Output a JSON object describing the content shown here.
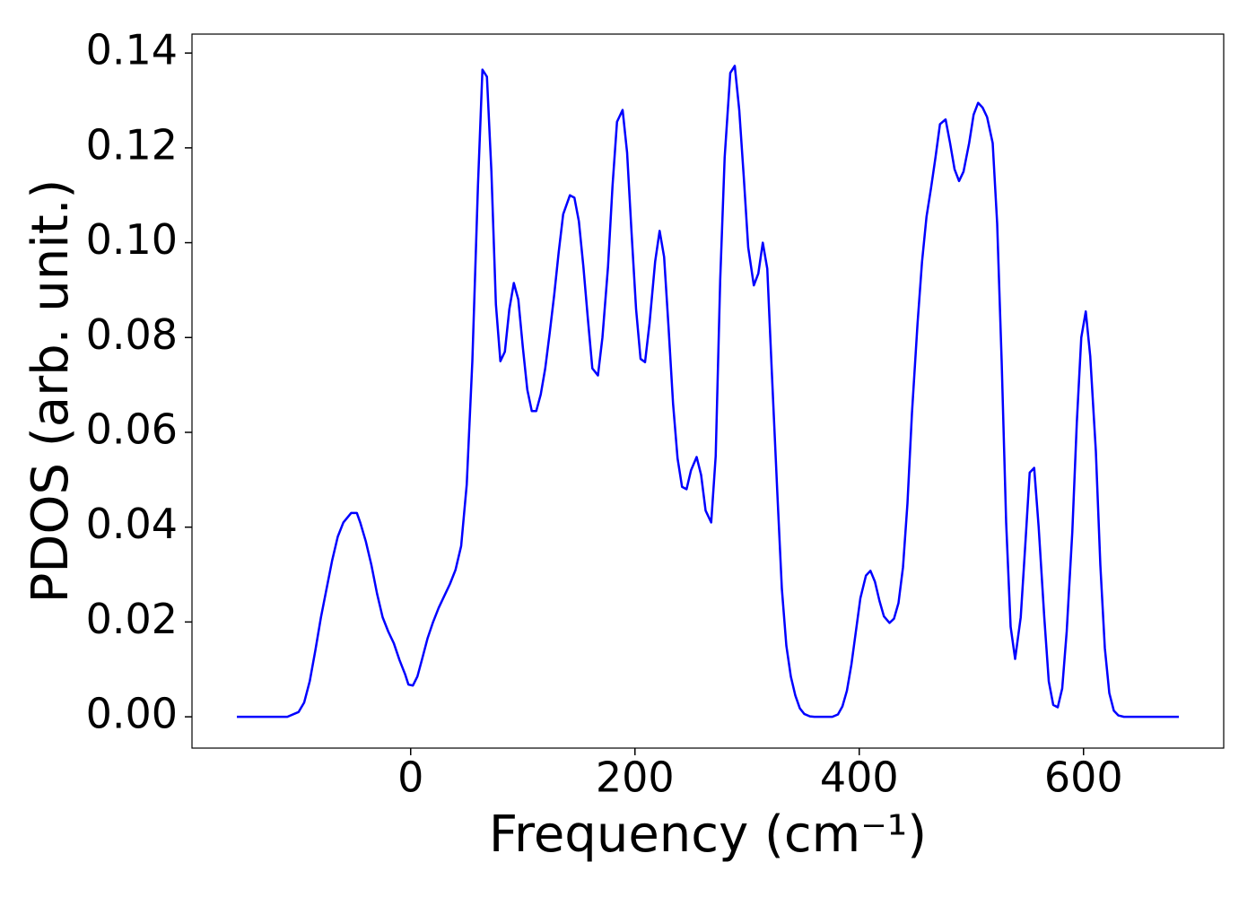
{
  "chart_data": {
    "type": "line",
    "xlabel": "Frequency (cm⁻¹)",
    "ylabel": "PDOS (arb. unit.)",
    "xlim": [
      -195,
      725
    ],
    "ylim": [
      -0.0066,
      0.144
    ],
    "xticks": [
      0,
      200,
      400,
      600
    ],
    "yticks": [
      {
        "value": 0,
        "label": "0.00"
      },
      {
        "value": 0.02,
        "label": "0.02"
      },
      {
        "value": 0.04,
        "label": "0.04"
      },
      {
        "value": 0.06,
        "label": "0.06"
      },
      {
        "value": 0.08,
        "label": "0.08"
      },
      {
        "value": 0.1,
        "label": "0.10"
      },
      {
        "value": 0.12,
        "label": "0.12"
      },
      {
        "value": 0.14,
        "label": "0.14"
      }
    ],
    "x": [
      -155,
      -110,
      -100,
      -95,
      -90,
      -85,
      -80,
      -75,
      -70,
      -65,
      -60,
      -53,
      -48,
      -45,
      -40,
      -35,
      -30,
      -25,
      -20,
      -15,
      -10,
      -5,
      -2,
      2,
      6,
      10,
      15,
      20,
      25,
      30,
      35,
      40,
      45,
      50,
      55,
      60,
      64,
      68,
      72,
      76,
      80,
      84,
      88,
      92,
      96,
      100,
      104,
      108,
      112,
      116,
      120,
      124,
      128,
      132,
      136,
      142,
      146,
      150,
      154,
      158,
      162,
      167,
      171,
      176,
      180,
      184,
      189,
      193,
      197,
      201,
      205,
      209,
      213,
      218,
      222,
      226,
      230,
      234,
      238,
      242,
      246,
      250,
      255,
      259,
      263,
      268,
      272,
      276,
      280,
      285,
      289,
      293,
      297,
      301,
      306,
      310,
      314,
      318,
      322,
      327,
      331,
      335,
      339,
      343,
      347,
      351,
      356,
      360,
      376,
      381,
      385,
      389,
      393,
      397,
      401,
      406,
      410,
      414,
      418,
      422,
      427,
      431,
      435,
      439,
      443,
      447,
      452,
      456,
      460,
      464,
      468,
      472,
      477,
      481,
      485,
      489,
      493,
      498,
      502,
      506,
      510,
      514,
      519,
      523,
      527,
      531,
      535,
      539,
      544,
      548,
      552,
      556,
      560,
      565,
      569,
      573,
      577,
      581,
      585,
      590,
      594,
      598,
      602,
      606,
      611,
      615,
      619,
      623,
      627,
      631,
      636,
      685
    ],
    "series": [
      {
        "color": "#0000ff",
        "values": [
          0,
          0,
          0.001,
          0.003,
          0.0075,
          0.014,
          0.021,
          0.027,
          0.033,
          0.038,
          0.041,
          0.043,
          0.043,
          0.041,
          0.037,
          0.032,
          0.026,
          0.021,
          0.018,
          0.0155,
          0.012,
          0.009,
          0.0068,
          0.0066,
          0.0085,
          0.012,
          0.0165,
          0.02,
          0.023,
          0.0255,
          0.028,
          0.031,
          0.036,
          0.049,
          0.075,
          0.112,
          0.1365,
          0.135,
          0.115,
          0.087,
          0.075,
          0.077,
          0.086,
          0.0915,
          0.088,
          0.078,
          0.069,
          0.0645,
          0.0645,
          0.068,
          0.0735,
          0.081,
          0.089,
          0.098,
          0.106,
          0.11,
          0.1095,
          0.1045,
          0.095,
          0.084,
          0.0735,
          0.072,
          0.08,
          0.095,
          0.112,
          0.1255,
          0.128,
          0.119,
          0.102,
          0.086,
          0.0755,
          0.0748,
          0.083,
          0.096,
          0.1025,
          0.097,
          0.082,
          0.066,
          0.0545,
          0.0485,
          0.048,
          0.052,
          0.0548,
          0.051,
          0.0435,
          0.041,
          0.055,
          0.092,
          0.118,
          0.1358,
          0.1373,
          0.128,
          0.114,
          0.099,
          0.091,
          0.0935,
          0.1,
          0.0945,
          0.073,
          0.047,
          0.027,
          0.015,
          0.0085,
          0.0045,
          0.0018,
          0.0006,
          0.0001,
          0,
          0,
          0.0005,
          0.0022,
          0.0055,
          0.011,
          0.018,
          0.025,
          0.0298,
          0.0308,
          0.0285,
          0.0245,
          0.0212,
          0.0198,
          0.0207,
          0.024,
          0.0315,
          0.045,
          0.064,
          0.083,
          0.096,
          0.1055,
          0.1115,
          0.118,
          0.125,
          0.126,
          0.121,
          0.1155,
          0.113,
          0.115,
          0.121,
          0.127,
          0.1295,
          0.1285,
          0.1265,
          0.121,
          0.104,
          0.075,
          0.041,
          0.019,
          0.0122,
          0.021,
          0.036,
          0.0515,
          0.0525,
          0.04,
          0.021,
          0.0075,
          0.0025,
          0.002,
          0.006,
          0.018,
          0.039,
          0.062,
          0.08,
          0.0855,
          0.076,
          0.056,
          0.032,
          0.0145,
          0.005,
          0.0013,
          0.0003,
          0,
          0
        ]
      }
    ]
  }
}
